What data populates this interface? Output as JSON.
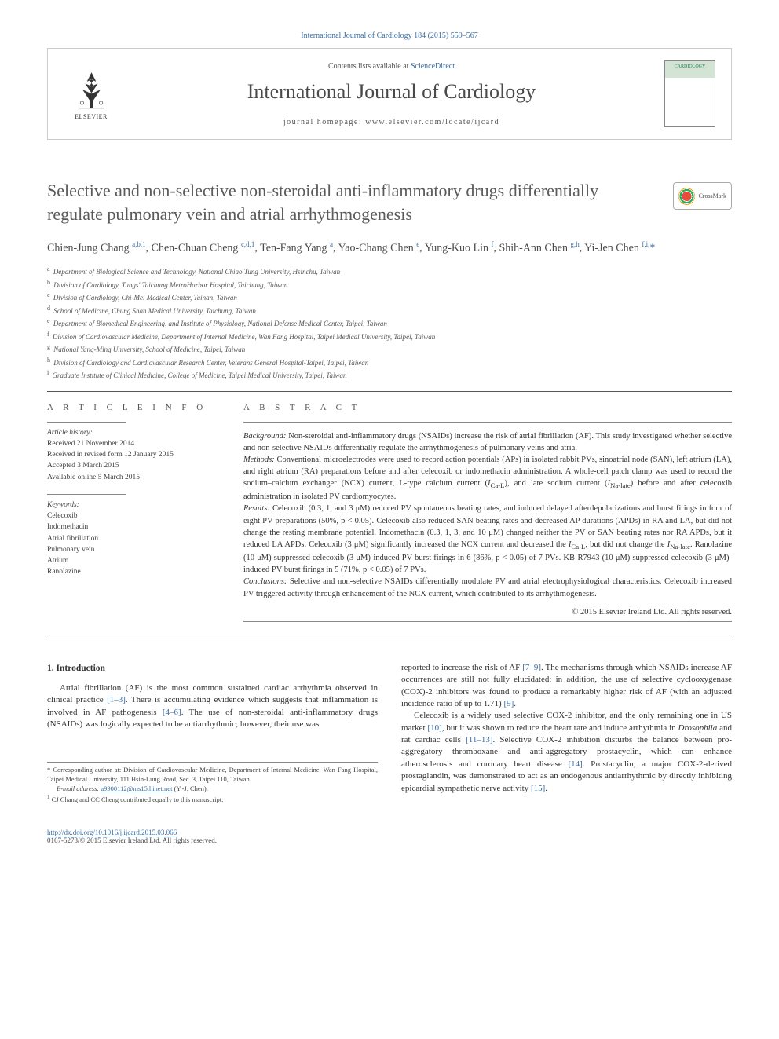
{
  "top_link": "International Journal of Cardiology 184 (2015) 559–567",
  "header": {
    "contents_prefix": "Contents lists available at ",
    "contents_link": "ScienceDirect",
    "journal_name": "International Journal of Cardiology",
    "homepage_prefix": "journal homepage: ",
    "homepage_url": "www.elsevier.com/locate/ijcard",
    "elsevier_label": "ELSEVIER",
    "cover_text": "CARDIOLOGY"
  },
  "crossmark_label": "CrossMark",
  "title": "Selective and non-selective non-steroidal anti-inflammatory drugs differentially regulate pulmonary vein and atrial arrhythmogenesis",
  "authors_html": "Chien-Jung Chang <sup>a,b,1</sup>, Chen-Chuan Cheng <sup>c,d,1</sup>, Ten-Fang Yang <sup>a</sup>, Yao-Chang Chen <sup>e</sup>, Yung-Kuo Lin <sup>f</sup>, Shih-Ann Chen <sup>g,h</sup>, Yi-Jen Chen <sup>f,i,</sup><span class='star'>*</span>",
  "affiliations": [
    {
      "key": "a",
      "text": "Department of Biological Science and Technology, National Chiao Tung University, Hsinchu, Taiwan"
    },
    {
      "key": "b",
      "text": "Division of Cardiology, Tungs' Taichung MetroHarbor Hospital, Taichung, Taiwan"
    },
    {
      "key": "c",
      "text": "Division of Cardiology, Chi-Mei Medical Center, Tainan, Taiwan"
    },
    {
      "key": "d",
      "text": "School of Medicine, Chung Shan Medical University, Taichung, Taiwan"
    },
    {
      "key": "e",
      "text": "Department of Biomedical Engineering, and Institute of Physiology, National Defense Medical Center, Taipei, Taiwan"
    },
    {
      "key": "f",
      "text": "Division of Cardiovascular Medicine, Department of Internal Medicine, Wan Fang Hospital, Taipei Medical University, Taipei, Taiwan"
    },
    {
      "key": "g",
      "text": "National Yang-Ming University, School of Medicine, Taipei, Taiwan"
    },
    {
      "key": "h",
      "text": "Division of Cardiology and Cardiovascular Research Center, Veterans General Hospital-Taipei, Taipei, Taiwan"
    },
    {
      "key": "i",
      "text": "Graduate Institute of Clinical Medicine, College of Medicine, Taipei Medical University, Taipei, Taiwan"
    }
  ],
  "article_info": {
    "heading": "A R T I C L E   I N F O",
    "history_label": "Article history:",
    "history": [
      "Received 21 November 2014",
      "Received in revised form 12 January 2015",
      "Accepted 3 March 2015",
      "Available online 5 March 2015"
    ],
    "keywords_label": "Keywords:",
    "keywords": [
      "Celecoxib",
      "Indomethacin",
      "Atrial fibrillation",
      "Pulmonary vein",
      "Atrium",
      "Ranolazine"
    ]
  },
  "abstract": {
    "heading": "A B S T R A C T",
    "background_label": "Background:",
    "background": "Non-steroidal anti-inflammatory drugs (NSAIDs) increase the risk of atrial fibrillation (AF). This study investigated whether selective and non-selective NSAIDs differentially regulate the arrhythmogenesis of pulmonary veins and atria.",
    "methods_label": "Methods:",
    "methods": "Conventional microelectrodes were used to record action potentials (APs) in isolated rabbit PVs, sinoatrial node (SAN), left atrium (LA), and right atrium (RA) preparations before and after celecoxib or indomethacin administration. A whole-cell patch clamp was used to record the sodium–calcium exchanger (NCX) current, L-type calcium current (ICa-L), and late sodium current (INa-late) before and after celecoxib administration in isolated PV cardiomyocytes.",
    "results_label": "Results:",
    "results": "Celecoxib (0.3, 1, and 3 μM) reduced PV spontaneous beating rates, and induced delayed afterdepolarizations and burst firings in four of eight PV preparations (50%, p < 0.05). Celecoxib also reduced SAN beating rates and decreased AP durations (APDs) in RA and LA, but did not change the resting membrane potential. Indomethacin (0.3, 1, 3, and 10 μM) changed neither the PV or SAN beating rates nor RA APDs, but it reduced LA APDs. Celecoxib (3 μM) significantly increased the NCX current and decreased the ICa-L, but did not change the INa-late. Ranolazine (10 μM) suppressed celecoxib (3 μM)-induced PV burst firings in 6 (86%, p < 0.05) of 7 PVs. KB-R7943 (10 μM) suppressed celecoxib (3 μM)-induced PV burst firings in 5 (71%, p < 0.05) of 7 PVs.",
    "conclusions_label": "Conclusions:",
    "conclusions": "Selective and non-selective NSAIDs differentially modulate PV and atrial electrophysiological characteristics. Celecoxib increased PV triggered activity through enhancement of the NCX current, which contributed to its arrhythmogenesis.",
    "copyright": "© 2015 Elsevier Ireland Ltd. All rights reserved."
  },
  "body": {
    "intro_heading": "1. Introduction",
    "col1_p1": "Atrial fibrillation (AF) is the most common sustained cardiac arrhythmia observed in clinical practice [1–3]. There is accumulating evidence which suggests that inflammation is involved in AF pathogenesis [4–6]. The use of non-steroidal anti-inflammatory drugs (NSAIDs) was logically expected to be antiarrhythmic; however, their use was",
    "col2_p1": "reported to increase the risk of AF [7–9]. The mechanisms through which NSAIDs increase AF occurrences are still not fully elucidated; in addition, the use of selective cyclooxygenase (COX)-2 inhibitors was found to produce a remarkably higher risk of AF (with an adjusted incidence ratio of up to 1.71) [9].",
    "col2_p2": "Celecoxib is a widely used selective COX-2 inhibitor, and the only remaining one in US market [10], but it was shown to reduce the heart rate and induce arrhythmia in Drosophila and rat cardiac cells [11–13]. Selective COX-2 inhibition disturbs the balance between pro-aggregatory thromboxane and anti-aggregatory prostacyclin, which can enhance atherosclerosis and coronary heart disease [14]. Prostacyclin, a major COX-2-derived prostaglandin, was demonstrated to act as an endogenous antiarrhythmic by directly inhibiting epicardial sympathetic nerve activity [15].",
    "refs": {
      "r1": "[1–3]",
      "r2": "[4–6]",
      "r3": "[7–9]",
      "r4": "[9]",
      "r5": "[10]",
      "r6": "[11–13]",
      "r7": "[14]",
      "r8": "[15]"
    }
  },
  "footnotes": {
    "corr_symbol": "*",
    "corr": "Corresponding author at: Division of Cardiovascular Medicine, Department of Internal Medicine, Wan Fang Hospital, Taipei Medical University, 111 Hsin-Lung Road, Sec. 3, Taipei 110, Taiwan.",
    "email_label": "E-mail address:",
    "email": "a9900112@ms15.hinet.net",
    "email_name": "(Y.-J. Chen).",
    "note1_symbol": "1",
    "note1": "CJ Chang and CC Cheng contributed equally to this manuscript."
  },
  "footer": {
    "doi": "http://dx.doi.org/10.1016/j.ijcard.2015.03.066",
    "issn_copy": "0167-5273/© 2015 Elsevier Ireland Ltd. All rights reserved."
  },
  "colors": {
    "link": "#3a6ea5",
    "text": "#333333",
    "heading_gray": "#5a5a5a",
    "rule": "#555555"
  }
}
